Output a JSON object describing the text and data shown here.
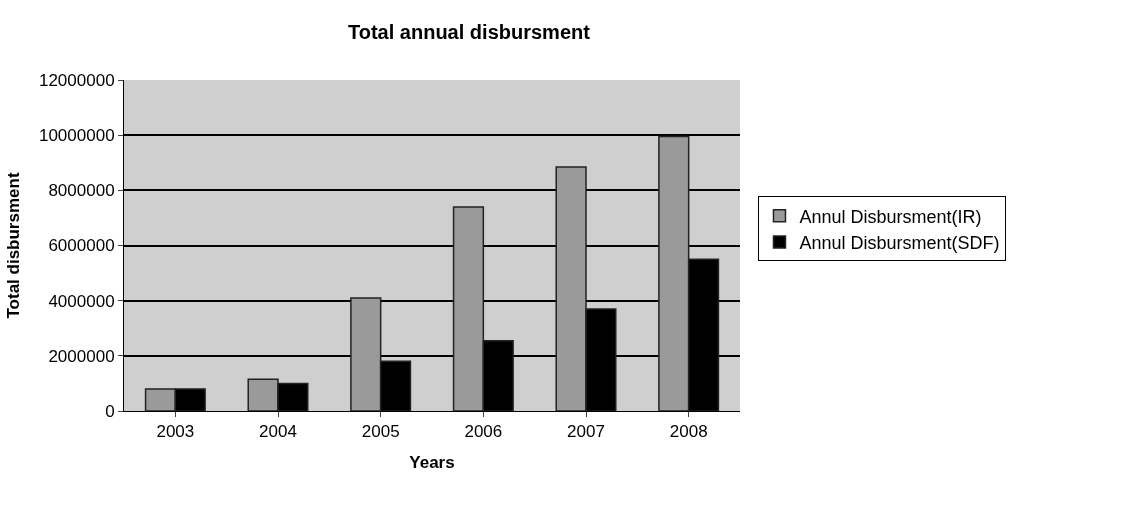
{
  "chart_data": {
    "type": "bar",
    "title": "Total annual disbursment",
    "xlabel": "Years",
    "ylabel": "Total disbursment",
    "categories": [
      "2003",
      "2004",
      "2005",
      "2006",
      "2007",
      "2008"
    ],
    "series": [
      {
        "name": "Annul Disbursment(IR)",
        "color": "#9a9a9a",
        "values": [
          800000,
          1150000,
          4100000,
          7400000,
          8850000,
          9950000
        ]
      },
      {
        "name": "Annul Disbursment(SDF)",
        "color": "#000000",
        "values": [
          800000,
          1000000,
          1800000,
          2550000,
          3700000,
          5500000
        ]
      }
    ],
    "ylim": [
      0,
      12000000
    ],
    "yticks": [
      0,
      2000000,
      4000000,
      6000000,
      8000000,
      10000000,
      12000000
    ],
    "grid": "y",
    "legend": "right"
  }
}
